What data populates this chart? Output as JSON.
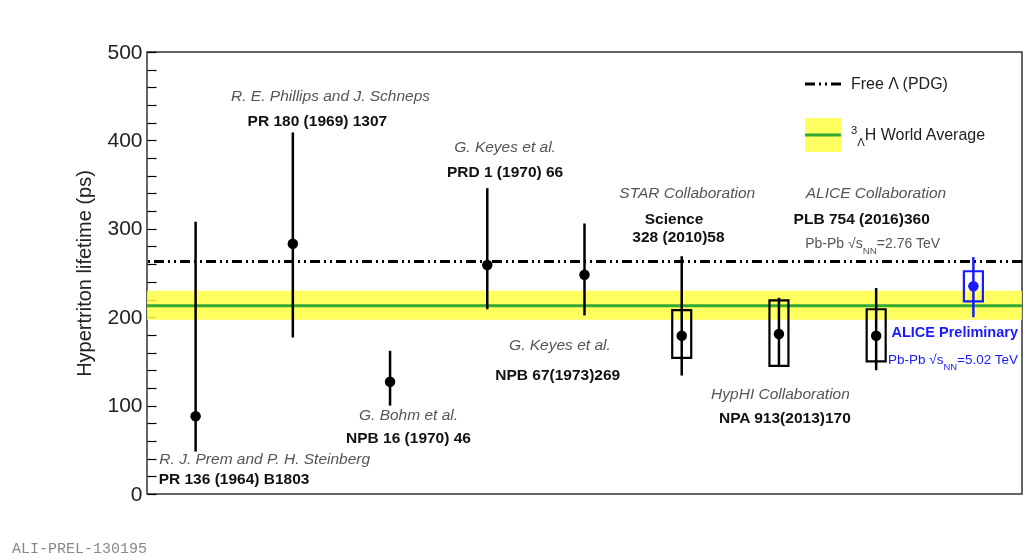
{
  "chart_data": {
    "type": "scatter",
    "ylabel": "Hypertriton lifetime (ps)",
    "categories": [
      null,
      null,
      null,
      null,
      null,
      null,
      null,
      null,
      null
    ],
    "series": [
      {
        "colors": [
          "#000000",
          "#000000",
          "#000000",
          "#000000",
          "#000000",
          "#000000",
          "#000000",
          "#000000",
          "#1a1aff"
        ],
        "values": [
          88,
          283,
          127,
          259,
          248,
          179,
          181,
          179,
          235
        ],
        "errors": [
          [
            48,
            308
          ],
          [
            177,
            409
          ],
          [
            100,
            162
          ],
          [
            209,
            346
          ],
          [
            202,
            306
          ],
          [
            134,
            269
          ],
          [
            145,
            222
          ],
          [
            140,
            233
          ],
          [
            200,
            268
          ]
        ]
      },
      {
        "type": "bar",
        "colors": [
          "#000000",
          "#000000",
          "#000000",
          "#000000",
          "#000000",
          "#000000",
          "#000000",
          "#000000",
          "#1a1aff"
        ],
        "base": [
          null,
          null,
          null,
          null,
          null,
          154,
          145,
          150,
          218
        ],
        "values": [
          null,
          null,
          null,
          null,
          null,
          54,
          74,
          59,
          34
        ]
      }
    ],
    "ylim": [
      0,
      500
    ],
    "yticks": [
      0,
      {
        "value": 20,
        "label": null
      },
      {
        "value": 40,
        "label": null
      },
      {
        "value": 60,
        "label": null
      },
      {
        "value": 80,
        "label": null
      },
      100,
      {
        "value": 120,
        "label": null
      },
      {
        "value": 140,
        "label": null
      },
      {
        "value": 160,
        "label": null
      },
      {
        "value": 180,
        "label": null
      },
      200,
      {
        "value": 220,
        "label": null
      },
      {
        "value": 240,
        "label": null
      },
      {
        "value": 260,
        "label": null
      },
      {
        "value": 280,
        "label": null
      },
      300,
      {
        "value": 320,
        "label": null
      },
      {
        "value": 340,
        "label": null
      },
      {
        "value": 360,
        "label": null
      },
      {
        "value": 380,
        "label": null
      },
      400,
      {
        "value": 420,
        "label": null
      },
      {
        "value": 440,
        "label": null
      },
      {
        "value": 460,
        "label": null
      },
      {
        "value": 480,
        "label": null
      },
      500
    ],
    "tick_labels": "y",
    "ref_lines": [
      {
        "axis": "y",
        "value": 263,
        "label": "Free Λ (PDG)",
        "color": "#000000",
        "line_style": "dashdot"
      },
      {
        "axis": "y",
        "value": 213,
        "label": "$^{3}$$_{Λ}$H World Average",
        "color": "#33aa33",
        "line_style": "solid"
      }
    ],
    "bands": [
      {
        "axis": "y",
        "from": 197,
        "to": 230,
        "color": "#ffff44"
      }
    ],
    "legend": "top right",
    "marker": "circle",
    "annotations": [
      "R. J. Prem and P. H. Steinberg",
      "PR 136 (1964) B1803",
      "R. E. Phillips and J. Schneps",
      "PR 180 (1969) 1307",
      "G. Bohm et al.",
      "NPB 16 (1970) 46",
      "G. Keyes et al.",
      "PRD 1 (1970) 66",
      "STAR Collaboration",
      "Science",
      "328 (2010)58",
      "ALICE Collaboration",
      "PLB 754 (2016)360",
      "Pb-Pb √s$_{NN}$=2.76 TeV",
      "G. Keyes et al.",
      "NPB 67(1973)269",
      "HypHI Collaboration",
      "NPA 913(2013)170",
      "ALICE Preliminary",
      "Pb-Pb √s$_{NN}$=5.02 TeV",
      "ALI-PREL-130195"
    ]
  }
}
